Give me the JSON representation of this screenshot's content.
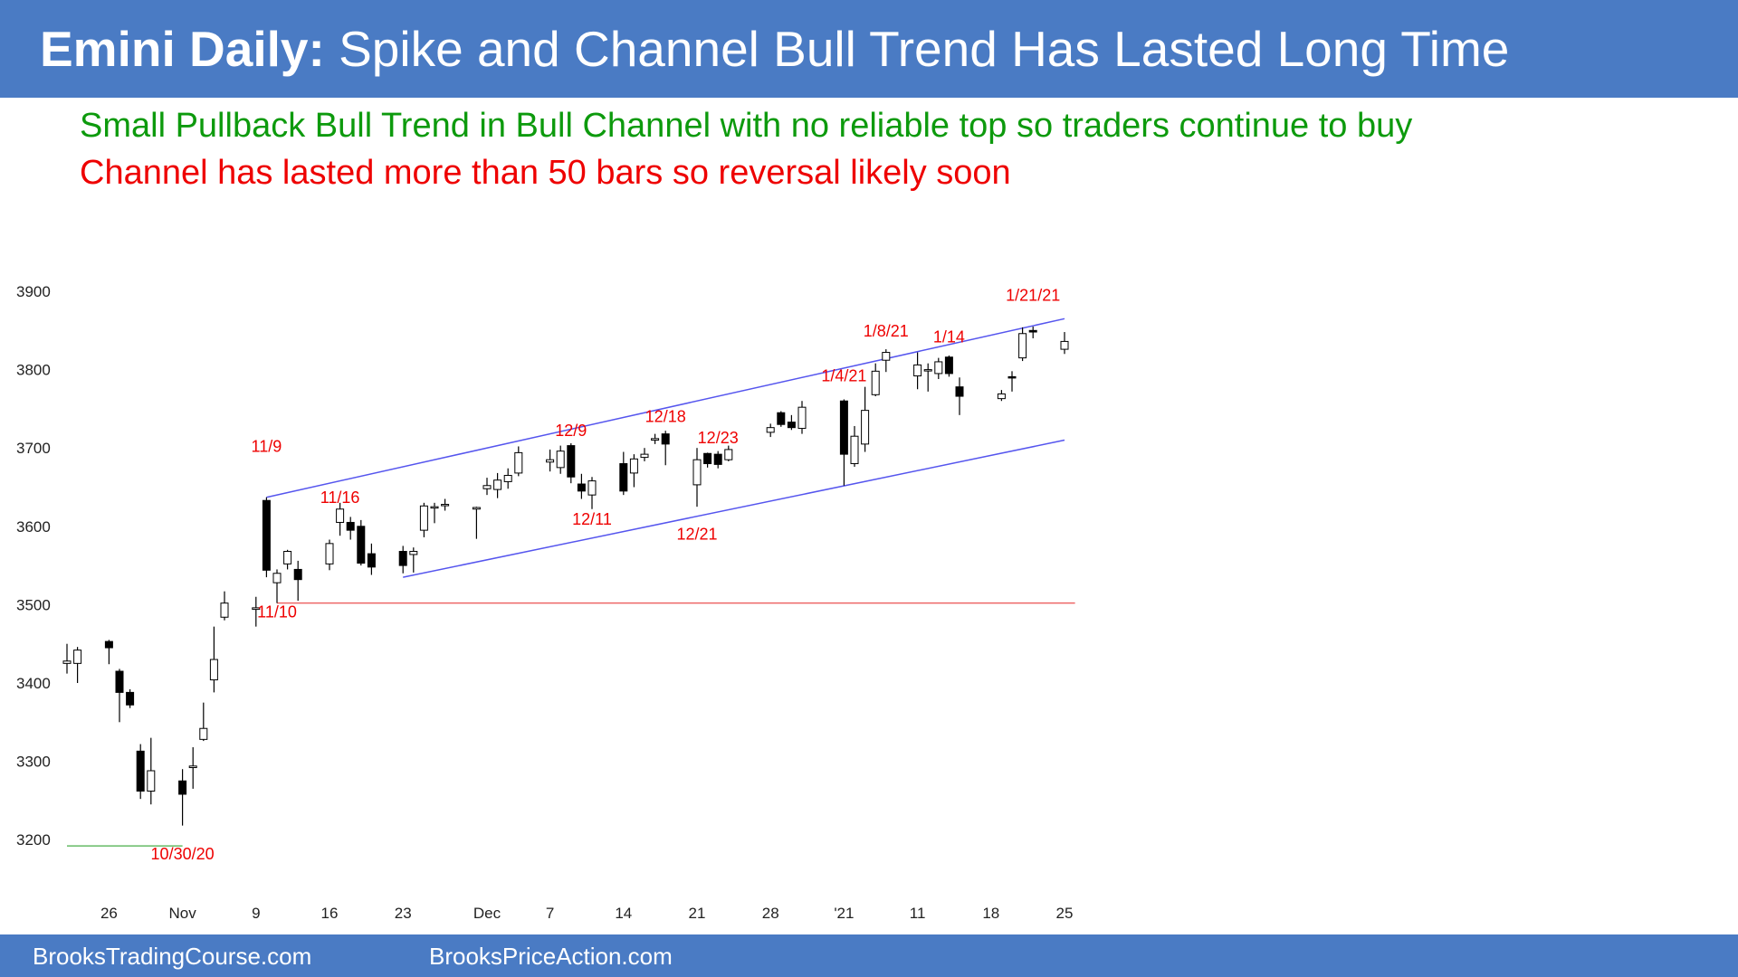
{
  "header": {
    "title_bold": "Emini Daily:",
    "title_rest": "Spike and Channel Bull Trend Has Lasted Long Time"
  },
  "subtitles": {
    "line1": "Small Pullback Bull Trend in Bull Channel with no reliable top so traders continue to buy",
    "line2": "Channel has lasted more than 50 bars so reversal likely soon"
  },
  "footer": {
    "site1": "BrooksTradingCourse.com",
    "site2": "BrooksPriceAction.com"
  },
  "colors": {
    "header_bg": "#4a7bc4",
    "green_text": "#0d9a0d",
    "red_text": "#ee0000",
    "channel_line": "#5555ee",
    "support_line": "#ee6666",
    "low_line": "#66bb66",
    "bull_body": "#ffffff",
    "bear_body": "#000000"
  },
  "chart_data": {
    "type": "candlestick",
    "title": "",
    "ylim": [
      3150,
      3920
    ],
    "y_ticks": [
      3200,
      3300,
      3400,
      3500,
      3600,
      3700,
      3800,
      3900
    ],
    "x_ticks": [
      {
        "label": "26",
        "date": "2020-10-26"
      },
      {
        "label": "Nov",
        "date": "2020-11-02"
      },
      {
        "label": "9",
        "date": "2020-11-09"
      },
      {
        "label": "16",
        "date": "2020-11-16"
      },
      {
        "label": "23",
        "date": "2020-11-23"
      },
      {
        "label": "Dec",
        "date": "2020-12-01"
      },
      {
        "label": "7",
        "date": "2020-12-07"
      },
      {
        "label": "14",
        "date": "2020-12-14"
      },
      {
        "label": "21",
        "date": "2020-12-21"
      },
      {
        "label": "28",
        "date": "2020-12-28"
      },
      {
        "label": "'21",
        "date": "2021-01-04"
      },
      {
        "label": "11",
        "date": "2021-01-11"
      },
      {
        "label": "18",
        "date": "2021-01-18"
      },
      {
        "label": "25",
        "date": "2021-01-25"
      }
    ],
    "candles": [
      {
        "date": "2020-10-22",
        "o": 3425,
        "h": 3450,
        "l": 3412,
        "c": 3428
      },
      {
        "date": "2020-10-23",
        "o": 3425,
        "h": 3446,
        "l": 3400,
        "c": 3442
      },
      {
        "date": "2020-10-26",
        "o": 3453,
        "h": 3455,
        "l": 3424,
        "c": 3445
      },
      {
        "date": "2020-10-27",
        "o": 3415,
        "h": 3418,
        "l": 3350,
        "c": 3388
      },
      {
        "date": "2020-10-28",
        "o": 3388,
        "h": 3392,
        "l": 3368,
        "c": 3372
      },
      {
        "date": "2020-10-29",
        "o": 3313,
        "h": 3322,
        "l": 3252,
        "c": 3262
      },
      {
        "date": "2020-10-30",
        "o": 3262,
        "h": 3330,
        "l": 3245,
        "c": 3288
      },
      {
        "date": "2020-11-02",
        "o": 3275,
        "h": 3290,
        "l": 3218,
        "c": 3258
      },
      {
        "date": "2020-11-03",
        "o": 3292,
        "h": 3318,
        "l": 3265,
        "c": 3294
      },
      {
        "date": "2020-11-04",
        "o": 3328,
        "h": 3375,
        "l": 3326,
        "c": 3342
      },
      {
        "date": "2020-11-05",
        "o": 3404,
        "h": 3472,
        "l": 3388,
        "c": 3430
      },
      {
        "date": "2020-11-06",
        "o": 3484,
        "h": 3517,
        "l": 3480,
        "c": 3502
      },
      {
        "date": "2020-11-09",
        "o": 3494,
        "h": 3510,
        "l": 3472,
        "c": 3496
      },
      {
        "date": "2020-11-10",
        "o": 3633,
        "h": 3637,
        "l": 3535,
        "c": 3544
      },
      {
        "date": "2020-11-11",
        "o": 3528,
        "h": 3545,
        "l": 3502,
        "c": 3540
      },
      {
        "date": "2020-11-12",
        "o": 3552,
        "h": 3570,
        "l": 3545,
        "c": 3568
      },
      {
        "date": "2020-11-13",
        "o": 3545,
        "h": 3556,
        "l": 3505,
        "c": 3532
      },
      {
        "date": "2020-11-16",
        "o": 3552,
        "h": 3583,
        "l": 3544,
        "c": 3578
      },
      {
        "date": "2020-11-17",
        "o": 3605,
        "h": 3630,
        "l": 3588,
        "c": 3622
      },
      {
        "date": "2020-11-18",
        "o": 3605,
        "h": 3612,
        "l": 3583,
        "c": 3595
      },
      {
        "date": "2020-11-19",
        "o": 3600,
        "h": 3608,
        "l": 3550,
        "c": 3553
      },
      {
        "date": "2020-11-20",
        "o": 3565,
        "h": 3578,
        "l": 3538,
        "c": 3548
      },
      {
        "date": "2020-11-23",
        "o": 3568,
        "h": 3575,
        "l": 3540,
        "c": 3550
      },
      {
        "date": "2020-11-24",
        "o": 3564,
        "h": 3573,
        "l": 3541,
        "c": 3568
      },
      {
        "date": "2020-11-25",
        "o": 3595,
        "h": 3630,
        "l": 3586,
        "c": 3626
      },
      {
        "date": "2020-11-26",
        "o": 3624,
        "h": 3630,
        "l": 3604,
        "c": 3625
      },
      {
        "date": "2020-11-27",
        "o": 3628,
        "h": 3635,
        "l": 3620,
        "c": 3628
      },
      {
        "date": "2020-11-30",
        "o": 3622,
        "h": 3625,
        "l": 3584,
        "c": 3624
      },
      {
        "date": "2020-12-01",
        "o": 3648,
        "h": 3662,
        "l": 3640,
        "c": 3652
      },
      {
        "date": "2020-12-02",
        "o": 3647,
        "h": 3668,
        "l": 3636,
        "c": 3659
      },
      {
        "date": "2020-12-03",
        "o": 3657,
        "h": 3674,
        "l": 3648,
        "c": 3665
      },
      {
        "date": "2020-12-04",
        "o": 3668,
        "h": 3702,
        "l": 3664,
        "c": 3694
      },
      {
        "date": "2020-12-07",
        "o": 3682,
        "h": 3698,
        "l": 3670,
        "c": 3685
      },
      {
        "date": "2020-12-08",
        "o": 3675,
        "h": 3703,
        "l": 3667,
        "c": 3696
      },
      {
        "date": "2020-12-09",
        "o": 3703,
        "h": 3706,
        "l": 3655,
        "c": 3663
      },
      {
        "date": "2020-12-10",
        "o": 3654,
        "h": 3667,
        "l": 3635,
        "c": 3645
      },
      {
        "date": "2020-12-11",
        "o": 3640,
        "h": 3663,
        "l": 3622,
        "c": 3658
      },
      {
        "date": "2020-12-14",
        "o": 3680,
        "h": 3695,
        "l": 3640,
        "c": 3645
      },
      {
        "date": "2020-12-15",
        "o": 3668,
        "h": 3692,
        "l": 3650,
        "c": 3686
      },
      {
        "date": "2020-12-16",
        "o": 3688,
        "h": 3700,
        "l": 3683,
        "c": 3692
      },
      {
        "date": "2020-12-17",
        "o": 3710,
        "h": 3718,
        "l": 3705,
        "c": 3712
      },
      {
        "date": "2020-12-18",
        "o": 3718,
        "h": 3722,
        "l": 3678,
        "c": 3705
      },
      {
        "date": "2020-12-21",
        "o": 3653,
        "h": 3700,
        "l": 3625,
        "c": 3685
      },
      {
        "date": "2020-12-22",
        "o": 3693,
        "h": 3694,
        "l": 3675,
        "c": 3680
      },
      {
        "date": "2020-12-23",
        "o": 3692,
        "h": 3696,
        "l": 3674,
        "c": 3679
      },
      {
        "date": "2020-12-24",
        "o": 3685,
        "h": 3703,
        "l": 3683,
        "c": 3698
      },
      {
        "date": "2020-12-28",
        "o": 3720,
        "h": 3731,
        "l": 3714,
        "c": 3726
      },
      {
        "date": "2020-12-29",
        "o": 3745,
        "h": 3747,
        "l": 3727,
        "c": 3730
      },
      {
        "date": "2020-12-30",
        "o": 3733,
        "h": 3742,
        "l": 3723,
        "c": 3726
      },
      {
        "date": "2020-12-31",
        "o": 3725,
        "h": 3760,
        "l": 3718,
        "c": 3752
      },
      {
        "date": "2021-01-04",
        "o": 3760,
        "h": 3762,
        "l": 3652,
        "c": 3692
      },
      {
        "date": "2021-01-05",
        "o": 3680,
        "h": 3728,
        "l": 3676,
        "c": 3715
      },
      {
        "date": "2021-01-06",
        "o": 3705,
        "h": 3778,
        "l": 3695,
        "c": 3748
      },
      {
        "date": "2021-01-07",
        "o": 3768,
        "h": 3808,
        "l": 3766,
        "c": 3798
      },
      {
        "date": "2021-01-08",
        "o": 3812,
        "h": 3826,
        "l": 3797,
        "c": 3822
      },
      {
        "date": "2021-01-11",
        "o": 3792,
        "h": 3822,
        "l": 3775,
        "c": 3806
      },
      {
        "date": "2021-01-12",
        "o": 3800,
        "h": 3808,
        "l": 3772,
        "c": 3800
      },
      {
        "date": "2021-01-13",
        "o": 3795,
        "h": 3815,
        "l": 3788,
        "c": 3810
      },
      {
        "date": "2021-01-14",
        "o": 3816,
        "h": 3818,
        "l": 3791,
        "c": 3795
      },
      {
        "date": "2021-01-15",
        "o": 3778,
        "h": 3790,
        "l": 3742,
        "c": 3766
      },
      {
        "date": "2021-01-19",
        "o": 3763,
        "h": 3774,
        "l": 3760,
        "c": 3769
      },
      {
        "date": "2021-01-20",
        "o": 3791,
        "h": 3798,
        "l": 3772,
        "c": 3790
      },
      {
        "date": "2021-01-21",
        "o": 3815,
        "h": 3854,
        "l": 3811,
        "c": 3846
      },
      {
        "date": "2021-01-22",
        "o": 3850,
        "h": 3855,
        "l": 3840,
        "c": 3848
      },
      {
        "date": "2021-01-25",
        "o": 3826,
        "h": 3848,
        "l": 3820,
        "c": 3836
      }
    ],
    "annotations": [
      {
        "text": "11/9",
        "date": "2020-11-10",
        "y": 3695
      },
      {
        "text": "11/10",
        "date": "2020-11-11",
        "y": 3484
      },
      {
        "text": "11/16",
        "date": "2020-11-17",
        "y": 3630
      },
      {
        "text": "12/9",
        "date": "2020-12-09",
        "y": 3715
      },
      {
        "text": "12/11",
        "date": "2020-12-11",
        "y": 3602
      },
      {
        "text": "12/18",
        "date": "2020-12-18",
        "y": 3733
      },
      {
        "text": "12/21",
        "date": "2020-12-21",
        "y": 3583
      },
      {
        "text": "12/23",
        "date": "2020-12-23",
        "y": 3706
      },
      {
        "text": "1/4/21",
        "date": "2021-01-04",
        "y": 3785
      },
      {
        "text": "1/8/21",
        "date": "2021-01-08",
        "y": 3842
      },
      {
        "text": "1/14",
        "date": "2021-01-14",
        "y": 3835
      },
      {
        "text": "1/21/21",
        "date": "2021-01-22",
        "y": 3888
      },
      {
        "text": "10/30/20",
        "date": "2020-11-02",
        "y": 3175
      }
    ],
    "lines": [
      {
        "name": "channel-top",
        "from": {
          "date": "2020-11-10",
          "y": 3637
        },
        "to": {
          "date": "2021-01-25",
          "y": 3865
        }
      },
      {
        "name": "channel-bottom",
        "from": {
          "date": "2020-11-23",
          "y": 3535
        },
        "to": {
          "date": "2021-01-25",
          "y": 3710
        }
      },
      {
        "name": "breakout-support",
        "from": {
          "date": "2020-11-11",
          "y": 3502
        },
        "to": {
          "date": "2021-01-26",
          "y": 3502
        }
      },
      {
        "name": "october-low",
        "from": {
          "date": "2020-10-22",
          "y": 3192
        },
        "to": {
          "date": "2020-11-02",
          "y": 3192
        }
      }
    ]
  }
}
